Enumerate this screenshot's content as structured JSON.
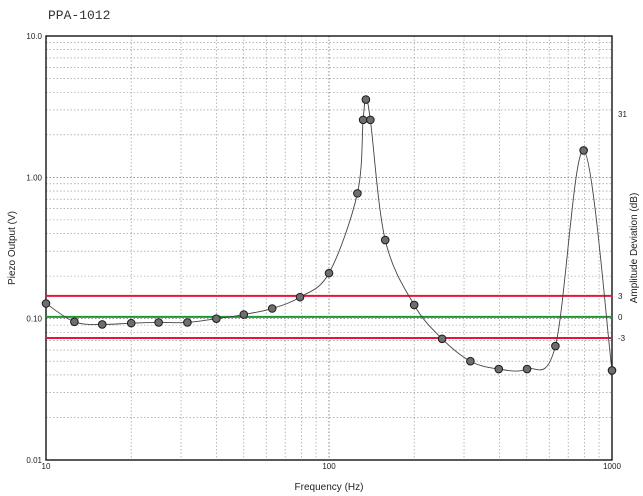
{
  "chart_data": {
    "type": "scatter",
    "title": "PPA-1012",
    "xlabel": "Frequency (Hz)",
    "ylabel": "Piezo Output (V)",
    "y2label": "Amplitude Deviation (dB)",
    "x_scale": "log",
    "y_scale": "log",
    "xlim": [
      10,
      1000
    ],
    "ylim": [
      0.01,
      10
    ],
    "x_ticks": [
      "10",
      "100",
      "1000"
    ],
    "y_ticks": [
      "0.01",
      "0.10",
      "1.00",
      "10.0"
    ],
    "y2_ticks": [
      "31",
      "3",
      "0",
      "-3"
    ],
    "grid": true,
    "series": [
      {
        "x": [
          10,
          12.6,
          15.8,
          20,
          25,
          31.6,
          40,
          50,
          63,
          79,
          100,
          126,
          132,
          135,
          140,
          158,
          200,
          251,
          316,
          398,
          501,
          631,
          794,
          1000
        ],
        "y": [
          0.128,
          0.095,
          0.091,
          0.093,
          0.094,
          0.094,
          0.1,
          0.107,
          0.118,
          0.142,
          0.21,
          0.77,
          2.55,
          3.55,
          2.55,
          0.36,
          0.125,
          0.072,
          0.05,
          0.044,
          0.044,
          0.064,
          1.55,
          0.043
        ]
      }
    ],
    "reference_lines": [
      {
        "label": "3",
        "y": 0.145,
        "color": "#e8143c"
      },
      {
        "label": "0",
        "y": 0.103,
        "color": "#1a9a2e"
      },
      {
        "label": "-3",
        "y": 0.073,
        "color": "#e8143c"
      }
    ],
    "y2_top_label_y": 2.8
  }
}
